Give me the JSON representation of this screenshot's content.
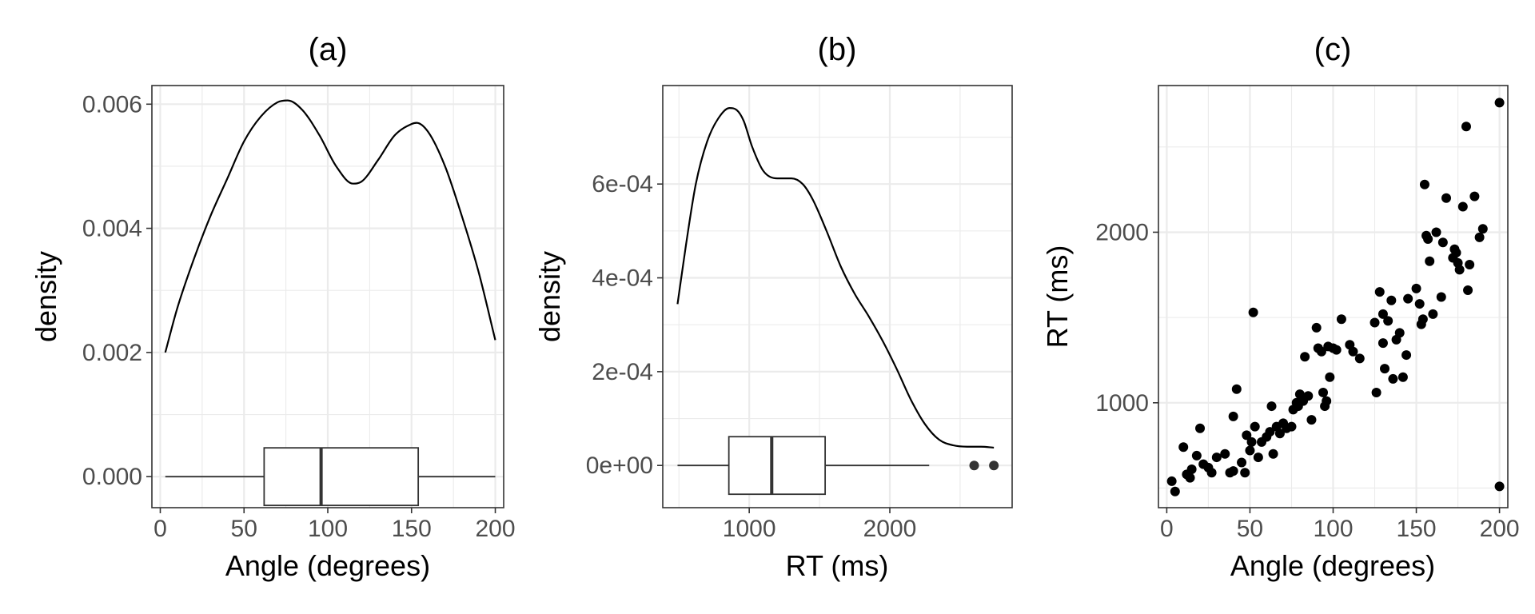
{
  "chart_data": [
    {
      "id": "a",
      "type": "density+boxplot",
      "title": "(a)",
      "xlabel": "Angle (degrees)",
      "ylabel": "density",
      "xlim": [
        -5,
        205
      ],
      "ylim": [
        -0.0005,
        0.0063
      ],
      "x_ticks": [
        0,
        50,
        100,
        150,
        200
      ],
      "x_tick_labels": [
        "0",
        "50",
        "100",
        "150",
        "200"
      ],
      "y_ticks": [
        0,
        0.002,
        0.004,
        0.006
      ],
      "y_tick_labels": [
        "0.000",
        "0.002",
        "0.004",
        "0.006"
      ],
      "density": {
        "x": [
          3,
          10,
          20,
          30,
          40,
          50,
          60,
          70,
          76,
          85,
          95,
          105,
          115,
          120,
          130,
          140,
          150,
          153,
          160,
          170,
          180,
          190,
          200
        ],
        "y": [
          0.002,
          0.0027,
          0.0035,
          0.0042,
          0.0048,
          0.0054,
          0.0058,
          0.00603,
          0.00606,
          0.0059,
          0.0055,
          0.005,
          0.00472,
          0.00475,
          0.0051,
          0.0055,
          0.00568,
          0.0057,
          0.00555,
          0.005,
          0.0042,
          0.0033,
          0.0022
        ]
      },
      "boxplot": {
        "y": 0,
        "min": 3,
        "q1": 62,
        "median": 96,
        "q3": 154,
        "max": 200,
        "outliers": []
      }
    },
    {
      "id": "b",
      "type": "density+boxplot",
      "title": "(b)",
      "xlabel": "RT (ms)",
      "ylabel": "density",
      "xlim": [
        385,
        2870
      ],
      "ylim": [
        -9e-05,
        0.00081
      ],
      "x_ticks": [
        1000,
        2000
      ],
      "x_tick_labels": [
        "1000",
        "2000"
      ],
      "y_ticks": [
        0,
        0.0002,
        0.0004,
        0.0006
      ],
      "y_tick_labels": [
        "0e+00",
        "2e-04",
        "4e-04",
        "6e-04"
      ],
      "density": {
        "x": [
          490,
          550,
          620,
          700,
          780,
          860,
          910,
          960,
          1020,
          1100,
          1200,
          1300,
          1380,
          1450,
          1550,
          1650,
          1750,
          1850,
          1950,
          2050,
          2150,
          2250,
          2350,
          2450,
          2550,
          2650,
          2740
        ],
        "y": [
          0.000344,
          0.00047,
          0.0006,
          0.00069,
          0.00074,
          0.000762,
          0.000758,
          0.000735,
          0.00068,
          0.000628,
          0.000612,
          0.000612,
          0.0006,
          0.000568,
          0.0005,
          0.000425,
          0.000366,
          0.000318,
          0.000265,
          0.000205,
          0.00014,
          8.8e-05,
          5.5e-05,
          4.3e-05,
          4e-05,
          4e-05,
          3.8e-05
        ]
      },
      "boxplot": {
        "y": 0,
        "min": 490,
        "q1": 855,
        "median": 1160,
        "q3": 1540,
        "max": 2280,
        "outliers": [
          2600,
          2740
        ]
      }
    },
    {
      "id": "c",
      "type": "scatter",
      "title": "(c)",
      "xlabel": "Angle (degrees)",
      "ylabel": "RT (ms)",
      "xlim": [
        -5,
        205
      ],
      "ylim": [
        385,
        2860
      ],
      "x_ticks": [
        0,
        50,
        100,
        150,
        200
      ],
      "x_tick_labels": [
        "0",
        "50",
        "100",
        "150",
        "200"
      ],
      "y_ticks": [
        1000,
        2000
      ],
      "y_tick_labels": [
        "1000",
        "2000"
      ],
      "points": [
        [
          3,
          540
        ],
        [
          5,
          480
        ],
        [
          10,
          740
        ],
        [
          12,
          580
        ],
        [
          14,
          560
        ],
        [
          15,
          610
        ],
        [
          18,
          690
        ],
        [
          20,
          850
        ],
        [
          22,
          640
        ],
        [
          25,
          620
        ],
        [
          27,
          590
        ],
        [
          30,
          680
        ],
        [
          35,
          700
        ],
        [
          38,
          590
        ],
        [
          40,
          600
        ],
        [
          40,
          920
        ],
        [
          42,
          1080
        ],
        [
          45,
          650
        ],
        [
          47,
          590
        ],
        [
          48,
          810
        ],
        [
          50,
          720
        ],
        [
          51,
          770
        ],
        [
          52,
          1530
        ],
        [
          53,
          860
        ],
        [
          55,
          680
        ],
        [
          57,
          770
        ],
        [
          60,
          800
        ],
        [
          62,
          830
        ],
        [
          63,
          980
        ],
        [
          64,
          700
        ],
        [
          66,
          860
        ],
        [
          68,
          820
        ],
        [
          70,
          880
        ],
        [
          72,
          850
        ],
        [
          75,
          860
        ],
        [
          76,
          960
        ],
        [
          78,
          1000
        ],
        [
          79,
          980
        ],
        [
          80,
          1050
        ],
        [
          82,
          1010
        ],
        [
          83,
          1270
        ],
        [
          85,
          1040
        ],
        [
          87,
          900
        ],
        [
          90,
          1440
        ],
        [
          91,
          1320
        ],
        [
          93,
          1300
        ],
        [
          94,
          1060
        ],
        [
          95,
          980
        ],
        [
          96,
          1010
        ],
        [
          97,
          1330
        ],
        [
          98,
          1150
        ],
        [
          100,
          1320
        ],
        [
          102,
          1310
        ],
        [
          105,
          1490
        ],
        [
          110,
          1340
        ],
        [
          112,
          1300
        ],
        [
          116,
          1260
        ],
        [
          125,
          1470
        ],
        [
          126,
          1060
        ],
        [
          128,
          1650
        ],
        [
          130,
          1350
        ],
        [
          130,
          1520
        ],
        [
          131,
          1200
        ],
        [
          133,
          1480
        ],
        [
          135,
          1600
        ],
        [
          136,
          1140
        ],
        [
          138,
          1370
        ],
        [
          140,
          1410
        ],
        [
          142,
          1150
        ],
        [
          144,
          1280
        ],
        [
          145,
          1610
        ],
        [
          150,
          1670
        ],
        [
          152,
          1580
        ],
        [
          153,
          1460
        ],
        [
          154,
          1490
        ],
        [
          155,
          2280
        ],
        [
          156,
          1980
        ],
        [
          157,
          1960
        ],
        [
          158,
          1830
        ],
        [
          160,
          1520
        ],
        [
          162,
          2000
        ],
        [
          165,
          1620
        ],
        [
          166,
          1940
        ],
        [
          168,
          2200
        ],
        [
          172,
          1850
        ],
        [
          173,
          1900
        ],
        [
          174,
          1880
        ],
        [
          175,
          1820
        ],
        [
          176,
          1780
        ],
        [
          178,
          2150
        ],
        [
          180,
          2620
        ],
        [
          181,
          1660
        ],
        [
          182,
          1810
        ],
        [
          185,
          2210
        ],
        [
          188,
          1970
        ],
        [
          190,
          2020
        ],
        [
          200,
          2760
        ],
        [
          200,
          510
        ]
      ]
    }
  ]
}
